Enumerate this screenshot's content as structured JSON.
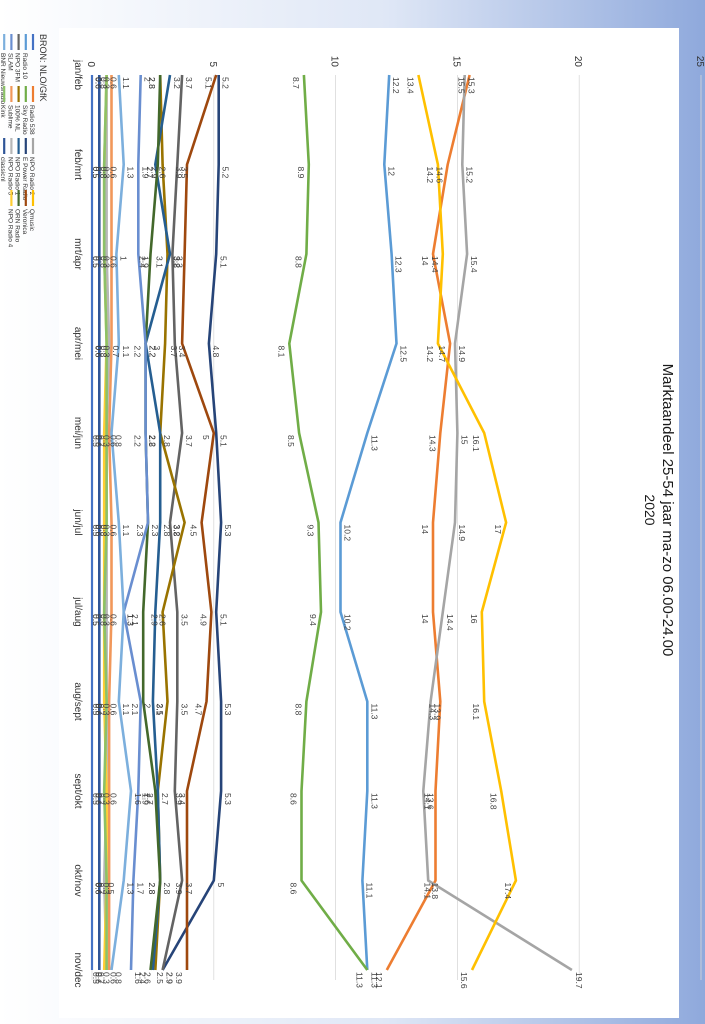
{
  "chart_data": {
    "type": "line",
    "title": "Marktaandeel 25-54 jaar ma-zo 06.00-24.00",
    "subtitle": "2020",
    "source": "BRON: NLO/GfK",
    "ylim": [
      0,
      25
    ],
    "yticks": [
      0,
      5,
      10,
      15,
      20,
      25
    ],
    "grid": true,
    "legend": "left",
    "categories": [
      "jan/feb",
      "feb/mrt",
      "mrt/apr",
      "apr/mei",
      "mei/jun",
      "jun/jul",
      "jul/aug",
      "aug/sept",
      "sept/okt",
      "okt/nov",
      "nov/dec"
    ],
    "series": [
      {
        "name": "",
        "color": "#4472c4",
        "values": [
          0,
          0,
          0,
          0,
          0,
          0,
          0,
          0,
          0,
          0,
          0
        ]
      },
      {
        "name": "Radio 538",
        "color": "#ed7d31",
        "values": [
          15.5,
          14.6,
          14,
          14.7,
          14.3,
          14,
          14,
          14.3,
          14.1,
          14.1,
          12.1
        ]
      },
      {
        "name": "NPO Radio 2",
        "color": "#a5a5a5",
        "values": [
          15.3,
          15.2,
          15.4,
          14.9,
          15,
          14.9,
          14.4,
          13.9,
          13.6,
          13.8,
          19.7
        ]
      },
      {
        "name": "Qmusic",
        "color": "#ffc000",
        "values": [
          13.4,
          14.2,
          14.4,
          14.2,
          16.1,
          17,
          16,
          16.1,
          16.8,
          17.4,
          15.6
        ]
      },
      {
        "name": "Radio 10",
        "color": "#5b9bd5",
        "values": [
          12.2,
          12,
          12.3,
          12.5,
          11.3,
          10.2,
          10.2,
          11.3,
          11.3,
          11.1,
          11.3
        ]
      },
      {
        "name": "Sky Radio",
        "color": "#70ad47",
        "values": [
          8.7,
          8.9,
          8.8,
          8.1,
          8.5,
          9.3,
          9.4,
          8.8,
          8.6,
          8.6,
          11.3
        ]
      },
      {
        "name": "E Power Radio",
        "color": "#264478",
        "values": [
          5.2,
          5.2,
          5.1,
          4.8,
          5.1,
          5.3,
          5.1,
          5.3,
          5.3,
          5,
          2.9
        ]
      },
      {
        "name": "Veronica",
        "color": "#9e480e",
        "values": [
          5.1,
          3.9,
          3.8,
          3.7,
          5,
          4.5,
          4.9,
          4.7,
          3.9,
          3.9,
          3.9
        ]
      },
      {
        "name": "NPO 3FM",
        "color": "#636363",
        "values": [
          3.7,
          3.5,
          3.3,
          3.4,
          3.7,
          3.2,
          3.5,
          3.5,
          3.4,
          3.7,
          2.9
        ]
      },
      {
        "name": "100% NL",
        "color": "#997300",
        "values": [
          2.8,
          2.9,
          3.1,
          3,
          2.8,
          3.8,
          2.9,
          3.1,
          2.7,
          2.8,
          2.6
        ]
      },
      {
        "name": "NPO Radio 1",
        "color": "#255e91",
        "values": [
          3.2,
          2.6,
          3.2,
          2.2,
          2.8,
          2.8,
          2.6,
          2.5,
          2.7,
          2.8,
          2.5
        ]
      },
      {
        "name": "ORN Radio",
        "color": "#43682b",
        "values": [
          2.8,
          2.7,
          2.4,
          2.2,
          2.2,
          2.3,
          2.1,
          2.1,
          2.6,
          2.8,
          2.4
        ]
      },
      {
        "name": "SLAM",
        "color": "#698ed0",
        "values": [
          2,
          1.9,
          1.9,
          2.2,
          2.2,
          2.3,
          1.3,
          2,
          1.9,
          1.7,
          1.6
        ]
      },
      {
        "name": "Sublime",
        "color": "#f1975a",
        "values": [
          0.8,
          0.8,
          0.8,
          0.8,
          0.7,
          0.8,
          0.8,
          0.7,
          0.7,
          0.7,
          0.7
        ]
      },
      {
        "name": "NPO Radio 5",
        "color": "#b7b7b7",
        "values": [
          0.6,
          0.6,
          0.6,
          0.7,
          0.6,
          0.6,
          0.6,
          0.6,
          0.6,
          0.5,
          0.6
        ]
      },
      {
        "name": "NPO Radio 4",
        "color": "#ffcd33",
        "values": [
          0.6,
          0.5,
          0.5,
          0.6,
          0.5,
          0.5,
          0.5,
          0.5,
          0.6,
          0.6,
          0.5
        ]
      },
      {
        "name": "BNR Nieuwsradio",
        "color": "#7cafdd",
        "values": [
          1.1,
          1.3,
          1,
          1.1,
          0.8,
          1.1,
          1.3,
          1.1,
          1.6,
          1.3,
          0.8
        ]
      },
      {
        "name": "Kink",
        "color": "#8cc168",
        "values": [
          0.6,
          0.5,
          0.5,
          0.6,
          0.6,
          0.6,
          0.5,
          0.6,
          0.5,
          0.6,
          0.6
        ]
      },
      {
        "name": "classicnl",
        "color": "#2f5597",
        "values": [
          0.3,
          0.3,
          0.3,
          0.3,
          0.3,
          0.3,
          0.3,
          0.3,
          0.3,
          0.3,
          0.3
        ]
      }
    ]
  }
}
